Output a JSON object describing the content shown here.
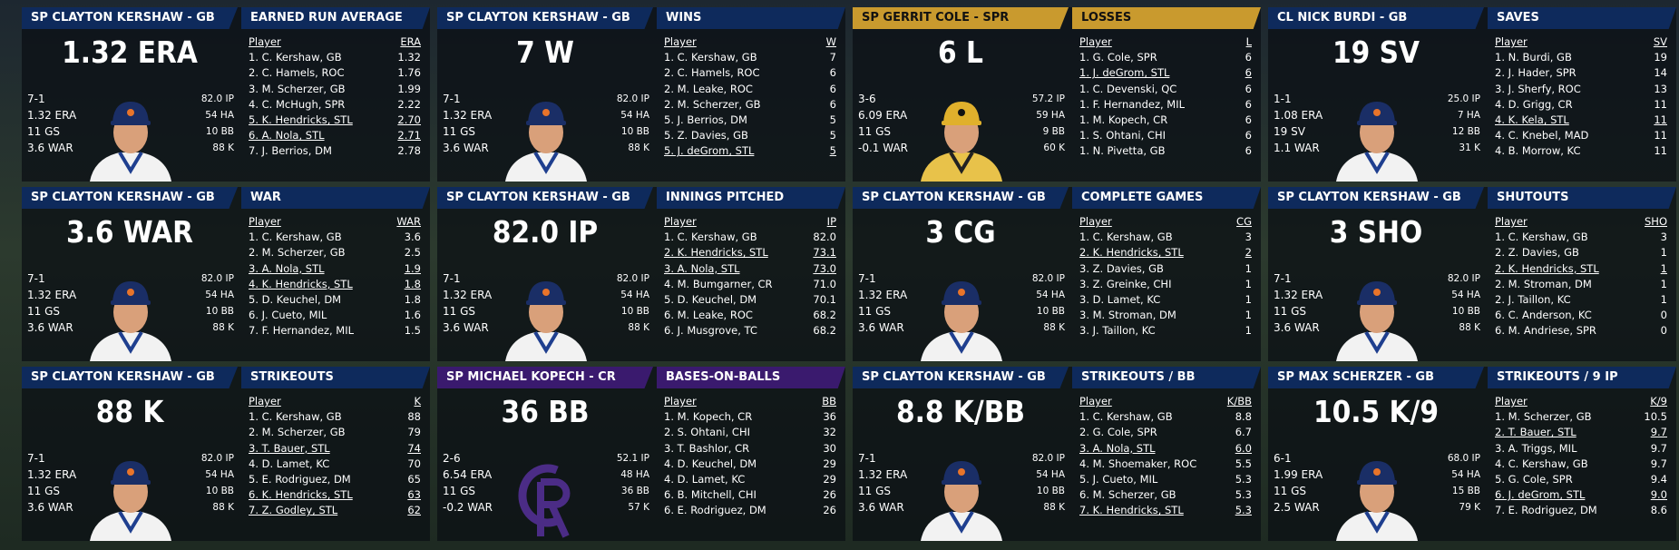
{
  "panels": [
    {
      "player_header": "SP CLAYTON KERSHAW - GB",
      "stat_header": "EARNED RUN AVERAGE",
      "big_stat": "1.32 ERA",
      "card_left": [
        "7-1",
        "1.32 ERA",
        "11 GS",
        "3.6 WAR"
      ],
      "card_right": [
        "82.0 IP",
        "54 HA",
        "10 BB",
        "88 K"
      ],
      "table": {
        "columns": [
          "Player",
          "ERA"
        ],
        "rows": [
          {
            "player": "1. C. Kershaw, GB",
            "value": "1.32"
          },
          {
            "player": "2. C. Hamels, ROC",
            "value": "1.76"
          },
          {
            "player": "3. M. Scherzer, GB",
            "value": "1.99"
          },
          {
            "player": "4. C. McHugh, SPR",
            "value": "2.22"
          },
          {
            "player": "5. K. Hendricks, STL",
            "value": "2.70",
            "underlined": true
          },
          {
            "player": "6. A. Nola, STL",
            "value": "2.71",
            "underlined": true
          },
          {
            "player": "7. J. Berrios, DM",
            "value": "2.78"
          }
        ]
      }
    },
    {
      "player_header": "SP CLAYTON KERSHAW - GB",
      "stat_header": "WINS",
      "big_stat": "7 W",
      "card_left": [
        "7-1",
        "1.32 ERA",
        "11 GS",
        "3.6 WAR"
      ],
      "card_right": [
        "82.0 IP",
        "54 HA",
        "10 BB",
        "88 K"
      ],
      "table": {
        "columns": [
          "Player",
          "W"
        ],
        "rows": [
          {
            "player": "1. C. Kershaw, GB",
            "value": "7"
          },
          {
            "player": "2. C. Hamels, ROC",
            "value": "6"
          },
          {
            "player": "2. M. Leake, ROC",
            "value": "6"
          },
          {
            "player": "2. M. Scherzer, GB",
            "value": "6"
          },
          {
            "player": "5. J. Berrios, DM",
            "value": "5"
          },
          {
            "player": "5. Z. Davies, GB",
            "value": "5"
          },
          {
            "player": "5. J. deGrom, STL",
            "value": "5",
            "underlined": true
          }
        ]
      }
    },
    {
      "player_header": "SP GERRIT COLE - SPR",
      "stat_header": "LOSSES",
      "header_color": "#c99a2e",
      "header_text_color": "#111111",
      "cap_color": "#e0b02c",
      "big_stat": "6 L",
      "card_left": [
        "3-6",
        "6.09 ERA",
        "11 GS",
        "-0.1 WAR"
      ],
      "card_right": [
        "57.2 IP",
        "59 HA",
        "9 BB",
        "60 K"
      ],
      "table": {
        "columns": [
          "Player",
          "L"
        ],
        "rows": [
          {
            "player": "1. G. Cole, SPR",
            "value": "6"
          },
          {
            "player": "1. J. deGrom, STL",
            "value": "6",
            "underlined": true
          },
          {
            "player": "1. C. Devenski, QC",
            "value": "6"
          },
          {
            "player": "1. F. Hernandez, MIL",
            "value": "6"
          },
          {
            "player": "1. M. Kopech, CR",
            "value": "6"
          },
          {
            "player": "1. S. Ohtani, CHI",
            "value": "6"
          },
          {
            "player": "1. N. Pivetta, GB",
            "value": "6"
          }
        ]
      }
    },
    {
      "player_header": "CL NICK BURDI - GB",
      "stat_header": "SAVES",
      "big_stat": "19 SV",
      "card_left": [
        "1-1",
        "1.08 ERA",
        "19 SV",
        "1.1 WAR"
      ],
      "card_right": [
        "25.0 IP",
        "7 HA",
        "12 BB",
        "31 K"
      ],
      "table": {
        "columns": [
          "Player",
          "SV"
        ],
        "rows": [
          {
            "player": "1. N. Burdi, GB",
            "value": "19"
          },
          {
            "player": "2. J. Hader, SPR",
            "value": "14"
          },
          {
            "player": "3. J. Sherfy, ROC",
            "value": "13"
          },
          {
            "player": "4. D. Grigg, CR",
            "value": "11"
          },
          {
            "player": "4. K. Kela, STL",
            "value": "11",
            "underlined": true
          },
          {
            "player": "4. C. Knebel, MAD",
            "value": "11"
          },
          {
            "player": "4. B. Morrow, KC",
            "value": "11"
          }
        ]
      }
    },
    {
      "player_header": "SP CLAYTON KERSHAW - GB",
      "stat_header": "WAR",
      "big_stat": "3.6 WAR",
      "card_left": [
        "7-1",
        "1.32 ERA",
        "11 GS",
        "3.6 WAR"
      ],
      "card_right": [
        "82.0 IP",
        "54 HA",
        "10 BB",
        "88 K"
      ],
      "table": {
        "columns": [
          "Player",
          "WAR"
        ],
        "rows": [
          {
            "player": "1. C. Kershaw, GB",
            "value": "3.6"
          },
          {
            "player": "2. M. Scherzer, GB",
            "value": "2.5"
          },
          {
            "player": "3. A. Nola, STL",
            "value": "1.9",
            "underlined": true
          },
          {
            "player": "4. K. Hendricks, STL",
            "value": "1.8",
            "underlined": true
          },
          {
            "player": "5. D. Keuchel, DM",
            "value": "1.8"
          },
          {
            "player": "6. J. Cueto, MIL",
            "value": "1.6"
          },
          {
            "player": "7. F. Hernandez, MIL",
            "value": "1.5"
          }
        ]
      }
    },
    {
      "player_header": "SP CLAYTON KERSHAW - GB",
      "stat_header": "INNINGS PITCHED",
      "big_stat": "82.0 IP",
      "card_left": [
        "7-1",
        "1.32 ERA",
        "11 GS",
        "3.6 WAR"
      ],
      "card_right": [
        "82.0 IP",
        "54 HA",
        "10 BB",
        "88 K"
      ],
      "table": {
        "columns": [
          "Player",
          "IP"
        ],
        "rows": [
          {
            "player": "1. C. Kershaw, GB",
            "value": "82.0"
          },
          {
            "player": "2. K. Hendricks, STL",
            "value": "73.1",
            "underlined": true
          },
          {
            "player": "3. A. Nola, STL",
            "value": "73.0",
            "underlined": true
          },
          {
            "player": "4. M. Bumgarner, CR",
            "value": "71.0"
          },
          {
            "player": "5. D. Keuchel, DM",
            "value": "70.1"
          },
          {
            "player": "6. M. Leake, ROC",
            "value": "68.2"
          },
          {
            "player": "6. J. Musgrove, TC",
            "value": "68.2"
          }
        ]
      }
    },
    {
      "player_header": "SP CLAYTON KERSHAW - GB",
      "stat_header": "COMPLETE GAMES",
      "big_stat": "3 CG",
      "card_left": [
        "7-1",
        "1.32 ERA",
        "11 GS",
        "3.6 WAR"
      ],
      "card_right": [
        "82.0 IP",
        "54 HA",
        "10 BB",
        "88 K"
      ],
      "table": {
        "columns": [
          "Player",
          "CG"
        ],
        "rows": [
          {
            "player": "1. C. Kershaw, GB",
            "value": "3"
          },
          {
            "player": "2. K. Hendricks, STL",
            "value": "2",
            "underlined": true
          },
          {
            "player": "3. Z. Davies, GB",
            "value": "1"
          },
          {
            "player": "3. Z. Greinke, CHI",
            "value": "1"
          },
          {
            "player": "3. D. Lamet, KC",
            "value": "1"
          },
          {
            "player": "3. M. Stroman, DM",
            "value": "1"
          },
          {
            "player": "3. J. Taillon, KC",
            "value": "1"
          }
        ]
      }
    },
    {
      "player_header": "SP CLAYTON KERSHAW - GB",
      "stat_header": "SHUTOUTS",
      "big_stat": "3 SHO",
      "card_left": [
        "7-1",
        "1.32 ERA",
        "11 GS",
        "3.6 WAR"
      ],
      "card_right": [
        "82.0 IP",
        "54 HA",
        "10 BB",
        "88 K"
      ],
      "table": {
        "columns": [
          "Player",
          "SHO"
        ],
        "rows": [
          {
            "player": "1. C. Kershaw, GB",
            "value": "3"
          },
          {
            "player": "2. Z. Davies, GB",
            "value": "1"
          },
          {
            "player": "2. K. Hendricks, STL",
            "value": "1",
            "underlined": true
          },
          {
            "player": "2. M. Stroman, DM",
            "value": "1"
          },
          {
            "player": "2. J. Taillon, KC",
            "value": "1"
          },
          {
            "player": "6. C. Anderson, KC",
            "value": "0"
          },
          {
            "player": "6. M. Andriese, SPR",
            "value": "0"
          }
        ]
      }
    },
    {
      "player_header": "SP CLAYTON KERSHAW - GB",
      "stat_header": "STRIKEOUTS",
      "big_stat": "88 K",
      "card_left": [
        "7-1",
        "1.32 ERA",
        "11 GS",
        "3.6 WAR"
      ],
      "card_right": [
        "82.0 IP",
        "54 HA",
        "10 BB",
        "88 K"
      ],
      "table": {
        "columns": [
          "Player",
          "K"
        ],
        "rows": [
          {
            "player": "1. C. Kershaw, GB",
            "value": "88"
          },
          {
            "player": "2. M. Scherzer, GB",
            "value": "79"
          },
          {
            "player": "3. T. Bauer, STL",
            "value": "74",
            "underlined": true
          },
          {
            "player": "4. D. Lamet, KC",
            "value": "70"
          },
          {
            "player": "5. E. Rodriguez, DM",
            "value": "65"
          },
          {
            "player": "6. K. Hendricks, STL",
            "value": "63",
            "underlined": true
          },
          {
            "player": "7. Z. Godley, STL",
            "value": "62",
            "underlined": true
          }
        ]
      }
    },
    {
      "player_header": "SP MICHAEL KOPECH - CR",
      "stat_header": "BASES-ON-BALLS",
      "header_color": "#3a1a6e",
      "logo_color": "#4b2c86",
      "big_stat": "36 BB",
      "card_left": [
        "2-6",
        "6.54 ERA",
        "11 GS",
        "-0.2 WAR"
      ],
      "card_right": [
        "52.1 IP",
        "48 HA",
        "36 BB",
        "57 K"
      ],
      "table": {
        "columns": [
          "Player",
          "BB"
        ],
        "rows": [
          {
            "player": "1. M. Kopech, CR",
            "value": "36"
          },
          {
            "player": "2. S. Ohtani, CHI",
            "value": "32"
          },
          {
            "player": "3. T. Bashlor, CR",
            "value": "30"
          },
          {
            "player": "4. D. Keuchel, DM",
            "value": "29"
          },
          {
            "player": "4. D. Lamet, KC",
            "value": "29"
          },
          {
            "player": "6. B. Mitchell, CHI",
            "value": "26"
          },
          {
            "player": "6. E. Rodriguez, DM",
            "value": "26"
          }
        ]
      }
    },
    {
      "player_header": "SP CLAYTON KERSHAW - GB",
      "stat_header": "STRIKEOUTS / BB",
      "big_stat": "8.8 K/BB",
      "card_left": [
        "7-1",
        "1.32 ERA",
        "11 GS",
        "3.6 WAR"
      ],
      "card_right": [
        "82.0 IP",
        "54 HA",
        "10 BB",
        "88 K"
      ],
      "table": {
        "columns": [
          "Player",
          "K/BB"
        ],
        "rows": [
          {
            "player": "1. C. Kershaw, GB",
            "value": "8.8"
          },
          {
            "player": "2. G. Cole, SPR",
            "value": "6.7"
          },
          {
            "player": "3. A. Nola, STL",
            "value": "6.0",
            "underlined": true
          },
          {
            "player": "4. M. Shoemaker, ROC",
            "value": "5.5"
          },
          {
            "player": "5. J. Cueto, MIL",
            "value": "5.3"
          },
          {
            "player": "6. M. Scherzer, GB",
            "value": "5.3"
          },
          {
            "player": "7. K. Hendricks, STL",
            "value": "5.3",
            "underlined": true
          }
        ]
      }
    },
    {
      "player_header": "SP MAX SCHERZER - GB",
      "stat_header": "STRIKEOUTS / 9 IP",
      "big_stat": "10.5 K/9",
      "card_left": [
        "6-1",
        "1.99 ERA",
        "11 GS",
        "2.5 WAR"
      ],
      "card_right": [
        "68.0 IP",
        "54 HA",
        "15 BB",
        "79 K"
      ],
      "table": {
        "columns": [
          "Player",
          "K/9"
        ],
        "rows": [
          {
            "player": "1. M. Scherzer, GB",
            "value": "10.5"
          },
          {
            "player": "2. T. Bauer, STL",
            "value": "9.7",
            "underlined": true
          },
          {
            "player": "3. A. Triggs, MIL",
            "value": "9.7"
          },
          {
            "player": "4. C. Kershaw, GB",
            "value": "9.7"
          },
          {
            "player": "5. G. Cole, SPR",
            "value": "9.4"
          },
          {
            "player": "6. J. deGrom, STL",
            "value": "9.0",
            "underlined": true
          },
          {
            "player": "7. E. Rodriguez, DM",
            "value": "8.6"
          }
        ]
      }
    }
  ]
}
